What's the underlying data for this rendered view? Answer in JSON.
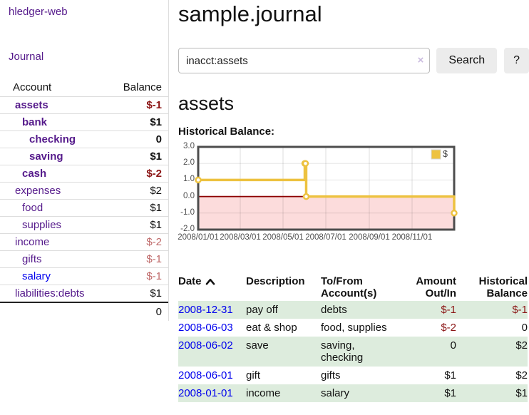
{
  "sidebar": {
    "brand": "hledger-web",
    "journal_link": "Journal",
    "accounts_header": {
      "account": "Account",
      "balance": "Balance"
    },
    "accounts": [
      {
        "name": "assets",
        "depth": 0,
        "bold": true,
        "link_color": "purple",
        "balance": "$-1",
        "balance_style": "neg-strong"
      },
      {
        "name": "bank",
        "depth": 1,
        "bold": true,
        "link_color": "purple",
        "balance": "$1",
        "balance_style": "bold"
      },
      {
        "name": "checking",
        "depth": 2,
        "bold": true,
        "link_color": "purple",
        "balance": "0",
        "balance_style": "bold"
      },
      {
        "name": "saving",
        "depth": 2,
        "bold": true,
        "link_color": "purple",
        "balance": "$1",
        "balance_style": "bold"
      },
      {
        "name": "cash",
        "depth": 1,
        "bold": true,
        "link_color": "purple",
        "balance": "$-2",
        "balance_style": "neg-strong"
      },
      {
        "name": "expenses",
        "depth": 0,
        "bold": false,
        "link_color": "purple",
        "balance": "$2",
        "balance_style": "plain"
      },
      {
        "name": "food",
        "depth": 1,
        "bold": false,
        "link_color": "purple",
        "balance": "$1",
        "balance_style": "plain"
      },
      {
        "name": "supplies",
        "depth": 1,
        "bold": false,
        "link_color": "purple",
        "balance": "$1",
        "balance_style": "plain"
      },
      {
        "name": "income",
        "depth": 0,
        "bold": false,
        "link_color": "purple",
        "balance": "$-2",
        "balance_style": "neg-soft"
      },
      {
        "name": "gifts",
        "depth": 1,
        "bold": false,
        "link_color": "purple",
        "balance": "$-1",
        "balance_style": "neg-soft"
      },
      {
        "name": "salary",
        "depth": 1,
        "bold": false,
        "link_color": "blue",
        "balance": "$-1",
        "balance_style": "neg-soft"
      },
      {
        "name": "liabilities:debts",
        "depth": 0,
        "bold": false,
        "link_color": "purple",
        "balance": "$1",
        "balance_style": "plain"
      }
    ],
    "total": "0"
  },
  "header": {
    "title": "sample.journal"
  },
  "search": {
    "query": "inacct:assets",
    "clear_icon": "×",
    "button_label": "Search",
    "help_label": "?"
  },
  "account_page": {
    "title": "assets",
    "chart_label": "Historical Balance:"
  },
  "chart_data": {
    "type": "line",
    "style": "step",
    "title": "Historical Balance",
    "series": [
      {
        "name": "$",
        "color": "#edc240",
        "points": [
          [
            "2008-01-01",
            1
          ],
          [
            "2008-06-01",
            2
          ],
          [
            "2008-06-02",
            2
          ],
          [
            "2008-06-03",
            0
          ],
          [
            "2008-12-31",
            -1
          ]
        ]
      }
    ],
    "x_range": [
      "2008-01-01",
      "2008-12-31"
    ],
    "ylim": [
      -2,
      3
    ],
    "y_ticks": [
      3.0,
      2.0,
      1.0,
      0.0,
      -1.0,
      -2.0
    ],
    "x_tick_labels": [
      "2008/01/01",
      "2008/03/01",
      "2008/05/01",
      "2008/07/01",
      "2008/09/01",
      "2008/11/01"
    ],
    "grid": true,
    "legend": {
      "label": "$",
      "position": "top-right"
    },
    "negative_region_color": "#fcdcdc",
    "zero_line_color": "#8b0000",
    "border_color": "#4d4d4d"
  },
  "register": {
    "headers": {
      "date": "Date",
      "description": "Description",
      "account_line1": "To/From",
      "account_line2": "Account(s)",
      "amount_line1": "Amount",
      "amount_line2": "Out/In",
      "balance_line1": "Historical",
      "balance_line2": "Balance"
    },
    "sort": "ascending",
    "rows": [
      {
        "date": "2008-12-31",
        "description": "pay off",
        "account": "debts",
        "amount": "$-1",
        "amount_negative": true,
        "balance": "$-1",
        "balance_negative": true,
        "shaded": true
      },
      {
        "date": "2008-06-03",
        "description": "eat & shop",
        "account": "food, supplies",
        "amount": "$-2",
        "amount_negative": true,
        "balance": "0",
        "balance_negative": false,
        "shaded": false
      },
      {
        "date": "2008-06-02",
        "description": "save",
        "account": "saving, checking",
        "amount": "0",
        "amount_negative": false,
        "balance": "$2",
        "balance_negative": false,
        "shaded": true
      },
      {
        "date": "2008-06-01",
        "description": "gift",
        "account": "gifts",
        "amount": "$1",
        "amount_negative": false,
        "balance": "$2",
        "balance_negative": false,
        "shaded": false
      },
      {
        "date": "2008-01-01",
        "description": "income",
        "account": "salary",
        "amount": "$1",
        "amount_negative": false,
        "balance": "$1",
        "balance_negative": false,
        "shaded": true
      }
    ]
  },
  "colors": {
    "link_purple": "#551a8b",
    "link_blue": "#0000ee",
    "negative_strong": "#8b1414",
    "negative_soft": "#bf6a6a",
    "row_stripe_green": "#ddecdd",
    "series_yellow": "#edc240",
    "negative_region_pink": "#fcdcdc",
    "zero_line_red": "#8b0000"
  }
}
